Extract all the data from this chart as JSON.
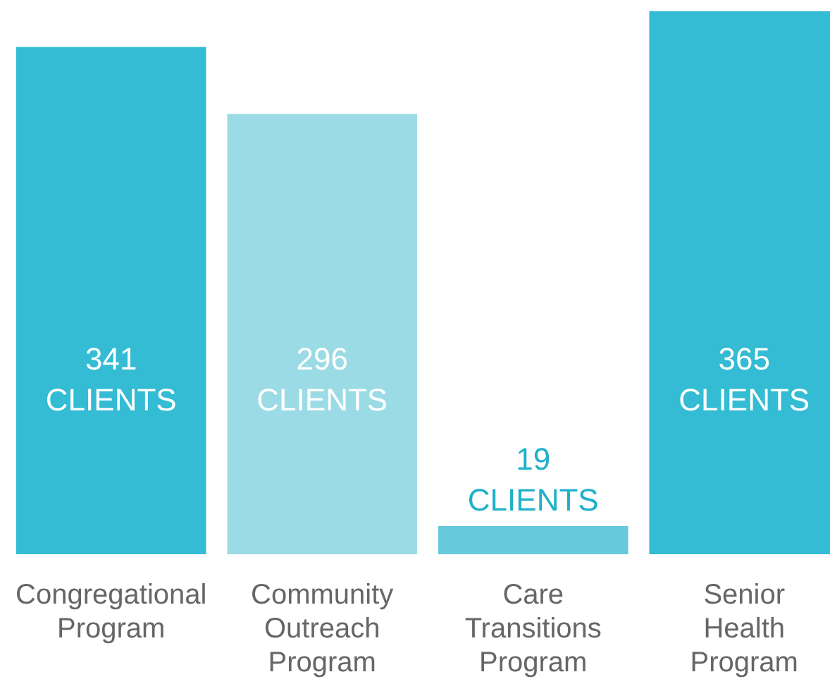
{
  "chart_data": {
    "type": "bar",
    "categories": [
      "Congregational Program",
      "Community Outreach Program",
      "Care Transitions Program",
      "Senior Health Program"
    ],
    "values": [
      341,
      296,
      19,
      365
    ],
    "colors": [
      "#33bcd3",
      "#9bdbe6",
      "#66c9dc",
      "#33bcd3"
    ],
    "value_labels": [
      "341 CLIENTS",
      "296 CLIENTS",
      "19 CLIENTS",
      "365 CLIENTS"
    ]
  }
}
